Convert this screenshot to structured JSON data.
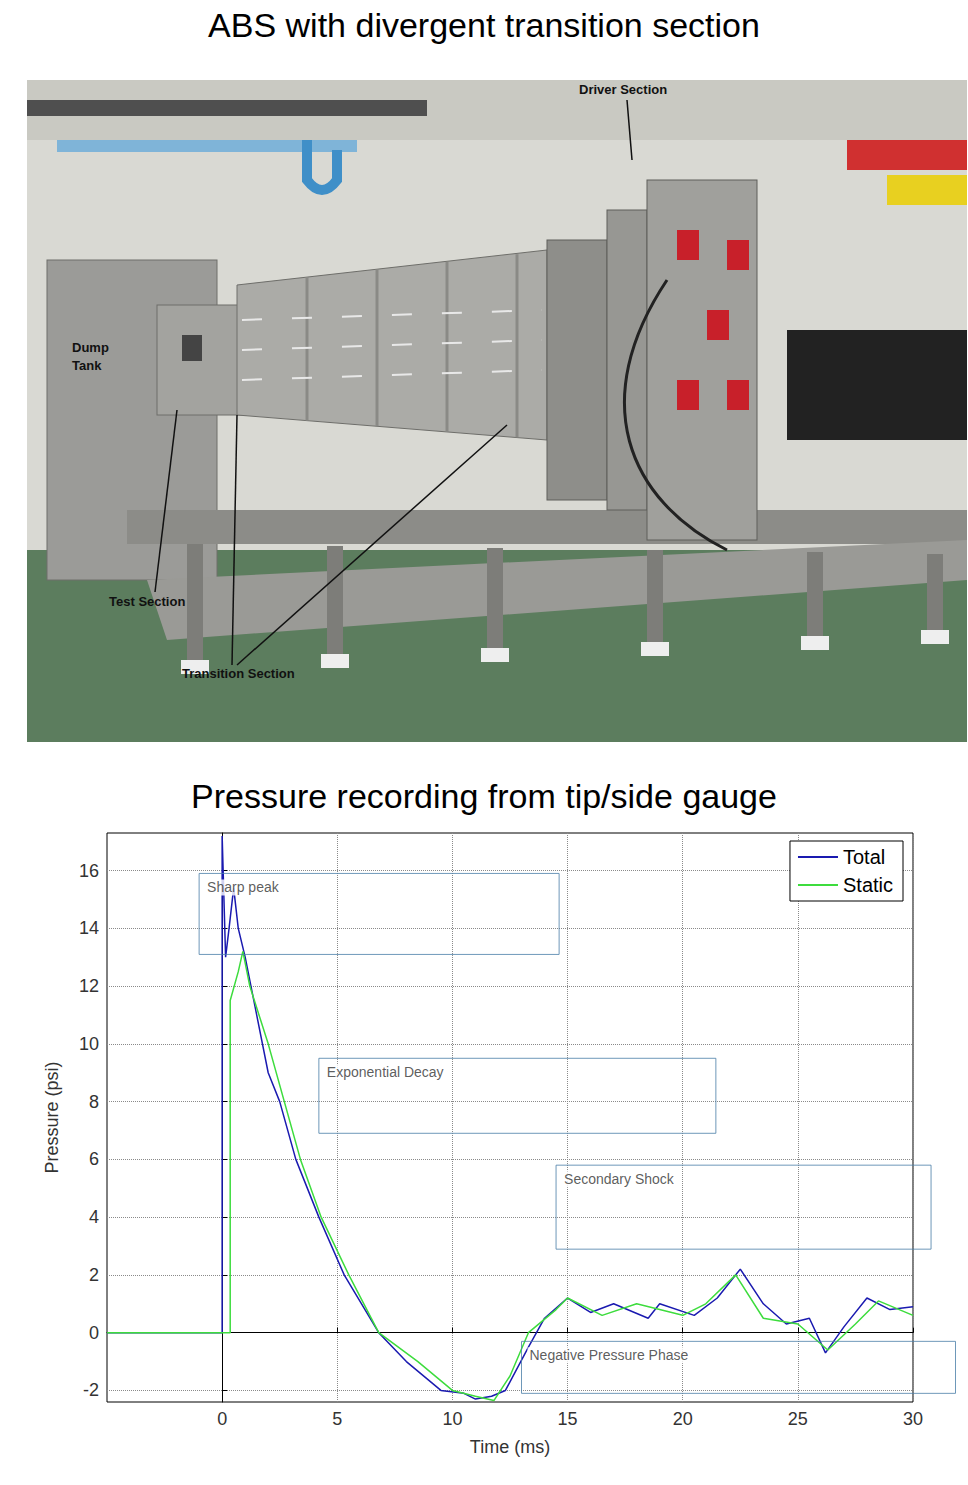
{
  "header": {
    "title": "ABS with divergent transition section"
  },
  "photo": {
    "labels": [
      "Driver Section",
      "Dump Tank",
      "Test Section",
      "Transition Section"
    ]
  },
  "chart_data": {
    "type": "line",
    "title": "Pressure recording from tip/side gauge",
    "x_label": "Time (ms)",
    "y_label": "Pressure (psi)",
    "xlim": [
      -5,
      30
    ],
    "xticks": [
      0,
      5,
      10,
      15,
      20,
      25,
      30
    ],
    "ylim": [
      -2.4,
      17.3
    ],
    "yticks": [
      -2,
      0,
      2,
      4,
      6,
      8,
      10,
      12,
      14,
      16
    ],
    "grid": true,
    "legend": "northeast",
    "series": [
      {
        "name": "Total",
        "color": "#1a1ab0",
        "x": [
          -5,
          0,
          0,
          0.15,
          0.3,
          0.5,
          0.7,
          1,
          1.5,
          2,
          2.5,
          3.2,
          4.2,
          5.3,
          6.8,
          8,
          9.5,
          10.5,
          11,
          11.7,
          12.3,
          13.3,
          14,
          15,
          16,
          17,
          18.5,
          19,
          20.5,
          21.5,
          22.5,
          23.5,
          24.5,
          25.5,
          26.2,
          27,
          28,
          29,
          30
        ],
        "values": [
          0,
          0,
          17.2,
          13,
          14,
          15.4,
          14,
          13,
          11,
          9,
          8,
          6,
          4,
          2,
          0,
          -1,
          -2,
          -2.1,
          -2.3,
          -2.2,
          -2,
          -0.5,
          0.5,
          1.2,
          0.7,
          1,
          0.5,
          1,
          0.6,
          1.2,
          2.2,
          1,
          0.3,
          0.5,
          -0.7,
          0.2,
          1.2,
          0.8,
          0.9
        ]
      },
      {
        "name": "Static",
        "color": "#3ddc3d",
        "x": [
          -5,
          0.35,
          0.35,
          0.7,
          0.9,
          1.2,
          2,
          2.7,
          3.4,
          4.3,
          5.5,
          6.8,
          8.5,
          10,
          11,
          11.8,
          12.5,
          13.3,
          14.5,
          15,
          16.5,
          18,
          20,
          21,
          22.3,
          23.5,
          25,
          26.3,
          27.5,
          28.5,
          30
        ],
        "values": [
          0,
          0,
          11.5,
          12.5,
          13.2,
          12,
          10,
          8,
          6,
          4,
          2,
          0,
          -1,
          -2,
          -2.2,
          -2.35,
          -1.5,
          0,
          0.8,
          1.2,
          0.6,
          1,
          0.6,
          1,
          2,
          0.5,
          0.3,
          -0.6,
          0.3,
          1.1,
          0.6
        ]
      }
    ],
    "annotations": [
      {
        "text": "Sharp peak",
        "x": -1,
        "y": 15.9
      },
      {
        "text": "Exponential Decay",
        "x": 4.2,
        "y": 9.5
      },
      {
        "text": "Secondary Shock",
        "x": 14.5,
        "y": 5.8
      },
      {
        "text": "Negative Pressure Phase",
        "x": 13,
        "y": -0.3
      }
    ]
  }
}
